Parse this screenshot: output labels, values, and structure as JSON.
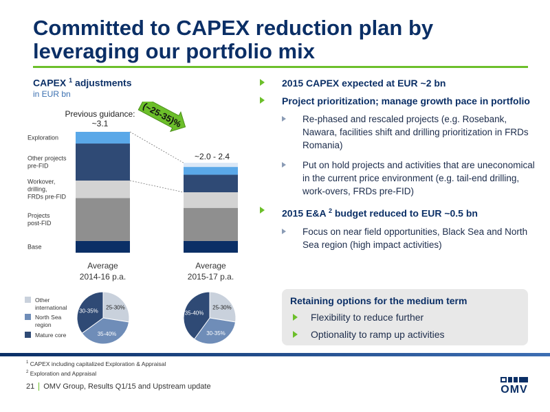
{
  "title": "Committed to CAPEX reduction plan by leveraging our portfolio mix",
  "chart_title": "CAPEX",
  "chart_title_sup": "1",
  "chart_title_suffix": " adjustments",
  "chart_subtitle": "in EUR bn",
  "colors": {
    "brand_navy": "#0b2f66",
    "accent_green": "#6cbf2a",
    "exploration": "#5aa8e8",
    "other_projects": "#2f4a75",
    "workover": "#d3d3d3",
    "projects_post_fid": "#8f8f8f",
    "base": "#0b2f66",
    "pie_other_international": "#c9d1dc",
    "pie_north_sea": "#6f8db8",
    "pie_mature_core": "#2f4a75"
  },
  "chart_data": [
    {
      "type": "bar",
      "stacked": true,
      "categories": [
        "Average 2014-16 p.a.",
        "Average 2015-17 p.a."
      ],
      "series": [
        {
          "name": "Base",
          "values": [
            0.3,
            0.3
          ]
        },
        {
          "name": "Projects post-FID",
          "values": [
            1.1,
            0.85
          ]
        },
        {
          "name": "Workover, drilling, FRDs pre-FID",
          "values": [
            0.45,
            0.4
          ]
        },
        {
          "name": "Other projects pre-FID",
          "values": [
            0.95,
            0.45
          ]
        },
        {
          "name": "Exploration",
          "values": [
            0.3,
            0.2
          ]
        }
      ],
      "totals": [
        "~3.1",
        "~2.0 - 2.4"
      ],
      "total_labels": [
        "Previous guidance:",
        ""
      ],
      "reduction_label": "(~25-35)%",
      "x_labels": [
        [
          "Average",
          "2014-16 p.a."
        ],
        [
          "Average",
          "2015-17 p.a."
        ]
      ],
      "ylim": [
        0,
        3.1
      ]
    },
    {
      "type": "pie",
      "title": "Average 2014-16 p.a.",
      "slices": [
        {
          "name": "Other international",
          "label": "25-30%",
          "value": 27.5
        },
        {
          "name": "North Sea region",
          "label": "35-40%",
          "value": 37.5
        },
        {
          "name": "Mature core",
          "label": "30-35%",
          "value": 35
        }
      ]
    },
    {
      "type": "pie",
      "title": "Average 2015-17 p.a.",
      "slices": [
        {
          "name": "Other international",
          "label": "25-30%",
          "value": 27.5
        },
        {
          "name": "North Sea region",
          "label": "30-35%",
          "value": 32.5
        },
        {
          "name": "Mature core",
          "label": "35-40%",
          "value": 40
        }
      ]
    }
  ],
  "bar_legend": [
    [
      "Exploration"
    ],
    [
      "Other projects",
      "pre-FID"
    ],
    [
      "Workover,",
      "drilling,",
      "FRDs pre-FID"
    ],
    [
      "Projects",
      "post-FID"
    ],
    [
      "Base"
    ]
  ],
  "pie_legend": [
    [
      "Other",
      "international"
    ],
    [
      "North Sea",
      "region"
    ],
    [
      "Mature core"
    ]
  ],
  "bullets": {
    "b1": "2015 CAPEX expected at  EUR ~2 bn",
    "b2": "Project prioritization; manage growth pace in portfolio",
    "b2_sub1": "Re-phased and rescaled projects (e.g. Rosebank, Nawara, facilities shift and drilling prioritization in FRDs Romania)",
    "b2_sub2": "Put on hold projects and activities that are uneconomical in the current price environment (e.g. tail-end drilling, work-overs, FRDs pre-FID)",
    "b3_prefix": "2015 E&A ",
    "b3_sup": "2",
    "b3_suffix": " budget reduced to EUR ~0.5 bn",
    "b3_sub1": "Focus on near field opportunities, Black Sea and North Sea region (high impact activities)"
  },
  "options": {
    "title": "Retaining options for the medium term",
    "items": [
      "Flexibility to reduce further",
      "Optionality to ramp up activities"
    ]
  },
  "footnotes": {
    "n1_sup": "1",
    "n1": " CAPEX including capitalized Exploration & Appraisal",
    "n2_sup": "2",
    "n2": " Exploration and Appraisal"
  },
  "footer": {
    "page": "21",
    "text": "OMV Group, Results Q1/15 and Upstream update"
  },
  "logo_text": "OMV",
  "icons": {
    "bullet": "green-triangle-icon",
    "sub_bullet": "grey-triangle-icon",
    "logo": "omv-logo-icon",
    "reduction_arrow": "down-arrow-icon"
  }
}
